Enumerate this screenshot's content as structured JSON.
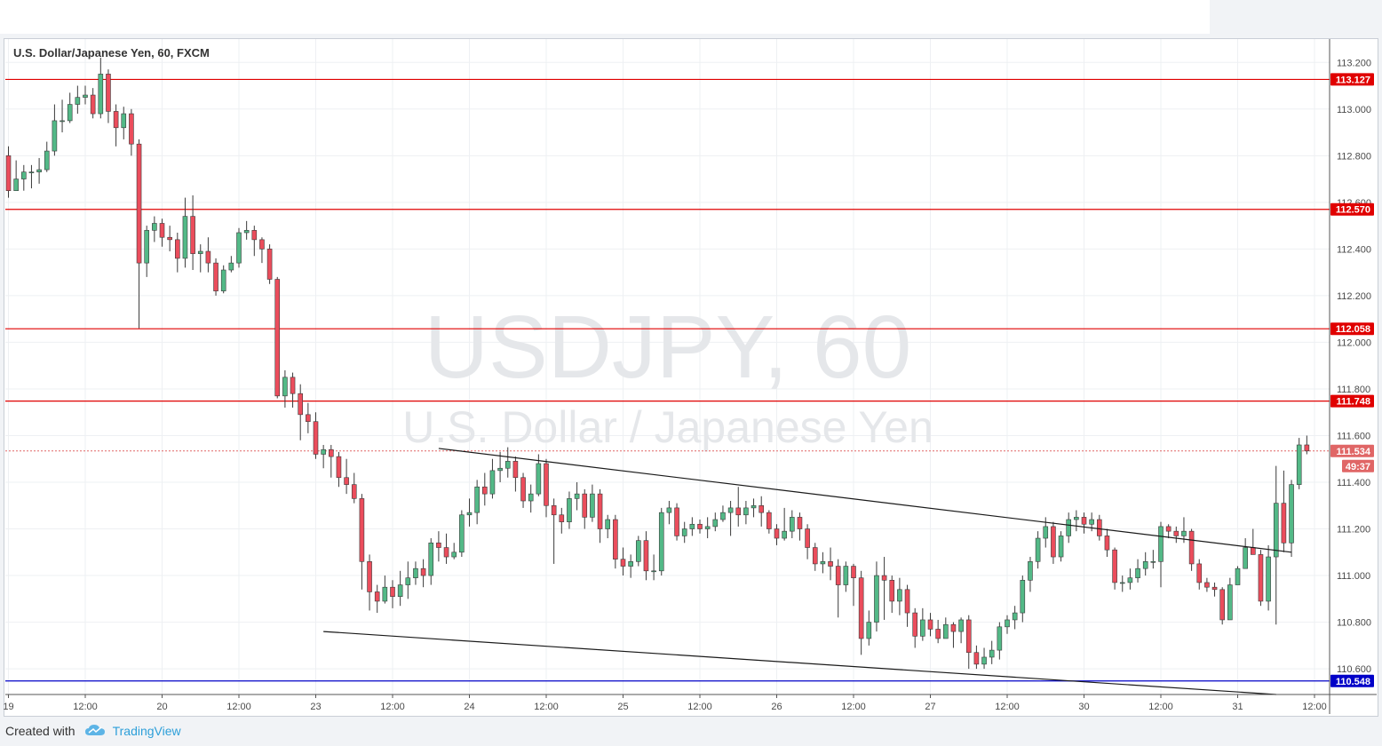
{
  "title": "U.S. Dollar/Japanese Yen, 60, FXCM",
  "watermark": {
    "symbol": "USDJPY, 60",
    "description": "U.S. Dollar / Japanese Yen"
  },
  "footer": {
    "created_with": "Created with",
    "brand": "TradingView"
  },
  "colors": {
    "up": "#53b987",
    "down": "#eb4d5c",
    "resistance": "#e00000",
    "support": "#0000c8",
    "current": "#e06666"
  },
  "chart_data": {
    "type": "candlestick",
    "ylim": [
      110.49,
      113.3
    ],
    "y_ticks": [
      "113.200",
      "113.000",
      "112.800",
      "112.600",
      "112.400",
      "112.200",
      "112.000",
      "111.800",
      "111.600",
      "111.400",
      "111.200",
      "111.000",
      "110.800",
      "110.600"
    ],
    "x_ticks": [
      "19",
      "12:00",
      "20",
      "12:00",
      "23",
      "12:00",
      "24",
      "12:00",
      "25",
      "12:00",
      "26",
      "12:00",
      "27",
      "12:00",
      "30",
      "12:00",
      "31",
      "12:00"
    ],
    "horizontal_levels": [
      {
        "value": 113.127,
        "label": "113.127",
        "kind": "resistance"
      },
      {
        "value": 112.57,
        "label": "112.570",
        "kind": "resistance"
      },
      {
        "value": 112.058,
        "label": "112.058",
        "kind": "resistance"
      },
      {
        "value": 111.748,
        "label": "111.748",
        "kind": "resistance"
      },
      {
        "value": 110.548,
        "label": "110.548",
        "kind": "support"
      }
    ],
    "current_price": {
      "value": 111.534,
      "label": "111.534",
      "countdown": "49:37"
    },
    "trendlines": [
      {
        "from": {
          "bar": 56,
          "value": 111.545
        },
        "to": {
          "bar": 167,
          "value": 111.1
        }
      },
      {
        "from": {
          "bar": 41,
          "value": 110.76
        },
        "to": {
          "bar": 165,
          "value": 110.49
        }
      }
    ],
    "candles": [
      [
        112.8,
        112.65,
        112.84,
        112.62
      ],
      [
        112.65,
        112.7,
        112.78,
        112.66
      ],
      [
        112.7,
        112.73,
        112.76,
        112.65
      ],
      [
        112.73,
        112.73,
        112.76,
        112.66
      ],
      [
        112.73,
        112.74,
        112.79,
        112.68
      ],
      [
        112.74,
        112.82,
        112.86,
        112.73
      ],
      [
        112.82,
        112.95,
        113.02,
        112.8
      ],
      [
        112.95,
        112.95,
        113.04,
        112.9
      ],
      [
        112.95,
        113.02,
        113.07,
        112.94
      ],
      [
        113.02,
        113.05,
        113.1,
        112.98
      ],
      [
        113.05,
        113.06,
        113.1,
        113.02
      ],
      [
        113.06,
        112.98,
        113.09,
        112.96
      ],
      [
        112.98,
        113.15,
        113.22,
        112.96
      ],
      [
        113.15,
        112.99,
        113.17,
        112.94
      ],
      [
        112.99,
        112.92,
        113.02,
        112.84
      ],
      [
        112.92,
        112.98,
        113.01,
        112.87
      ],
      [
        112.98,
        112.85,
        113.0,
        112.8
      ],
      [
        112.85,
        112.34,
        112.87,
        112.06
      ],
      [
        112.34,
        112.48,
        112.5,
        112.28
      ],
      [
        112.48,
        112.51,
        112.54,
        112.43
      ],
      [
        112.51,
        112.45,
        112.53,
        112.41
      ],
      [
        112.45,
        112.44,
        112.5,
        112.39
      ],
      [
        112.44,
        112.36,
        112.47,
        112.3
      ],
      [
        112.36,
        112.54,
        112.62,
        112.32
      ],
      [
        112.54,
        112.38,
        112.63,
        112.31
      ],
      [
        112.38,
        112.39,
        112.42,
        112.3
      ],
      [
        112.39,
        112.34,
        112.45,
        112.3
      ],
      [
        112.34,
        112.22,
        112.36,
        112.2
      ],
      [
        112.22,
        112.31,
        112.33,
        112.21
      ],
      [
        112.31,
        112.34,
        112.37,
        112.3
      ],
      [
        112.34,
        112.47,
        112.49,
        112.32
      ],
      [
        112.47,
        112.48,
        112.52,
        112.44
      ],
      [
        112.48,
        112.44,
        112.5,
        112.37
      ],
      [
        112.44,
        112.4,
        112.45,
        112.34
      ],
      [
        112.4,
        112.27,
        112.42,
        112.25
      ],
      [
        112.27,
        111.77,
        112.28,
        111.76
      ],
      [
        111.77,
        111.85,
        111.88,
        111.72
      ],
      [
        111.85,
        111.78,
        111.87,
        111.72
      ],
      [
        111.78,
        111.69,
        111.82,
        111.58
      ],
      [
        111.69,
        111.66,
        111.74,
        111.61
      ],
      [
        111.66,
        111.52,
        111.7,
        111.5
      ],
      [
        111.52,
        111.54,
        111.56,
        111.46
      ],
      [
        111.54,
        111.51,
        111.56,
        111.42
      ],
      [
        111.51,
        111.42,
        111.53,
        111.38
      ],
      [
        111.42,
        111.39,
        111.5,
        111.35
      ],
      [
        111.39,
        111.33,
        111.44,
        111.31
      ],
      [
        111.33,
        111.06,
        111.35,
        110.94
      ],
      [
        111.06,
        110.93,
        111.09,
        110.85
      ],
      [
        110.93,
        110.89,
        110.96,
        110.84
      ],
      [
        110.89,
        110.95,
        111.0,
        110.88
      ],
      [
        110.95,
        110.91,
        110.98,
        110.86
      ],
      [
        110.91,
        110.96,
        111.02,
        110.87
      ],
      [
        110.96,
        110.99,
        111.06,
        110.9
      ],
      [
        110.99,
        111.03,
        111.06,
        110.96
      ],
      [
        111.03,
        111.0,
        111.07,
        110.95
      ],
      [
        111.0,
        111.14,
        111.16,
        110.96
      ],
      [
        111.14,
        111.12,
        111.19,
        111.06
      ],
      [
        111.12,
        111.08,
        111.18,
        111.05
      ],
      [
        111.08,
        111.1,
        111.14,
        111.07
      ],
      [
        111.1,
        111.26,
        111.28,
        111.08
      ],
      [
        111.26,
        111.27,
        111.33,
        111.21
      ],
      [
        111.27,
        111.38,
        111.41,
        111.22
      ],
      [
        111.38,
        111.35,
        111.44,
        111.3
      ],
      [
        111.35,
        111.45,
        111.5,
        111.33
      ],
      [
        111.45,
        111.46,
        111.53,
        111.4
      ],
      [
        111.46,
        111.49,
        111.55,
        111.42
      ],
      [
        111.49,
        111.42,
        111.51,
        111.36
      ],
      [
        111.42,
        111.32,
        111.44,
        111.29
      ],
      [
        111.32,
        111.35,
        111.39,
        111.27
      ],
      [
        111.35,
        111.48,
        111.52,
        111.34
      ],
      [
        111.48,
        111.3,
        111.5,
        111.25
      ],
      [
        111.3,
        111.26,
        111.33,
        111.05
      ],
      [
        111.26,
        111.23,
        111.29,
        111.18
      ],
      [
        111.23,
        111.33,
        111.36,
        111.2
      ],
      [
        111.33,
        111.35,
        111.4,
        111.28
      ],
      [
        111.35,
        111.25,
        111.37,
        111.2
      ],
      [
        111.25,
        111.35,
        111.39,
        111.23
      ],
      [
        111.35,
        111.2,
        111.37,
        111.14
      ],
      [
        111.2,
        111.24,
        111.26,
        111.16
      ],
      [
        111.24,
        111.07,
        111.26,
        111.03
      ],
      [
        111.07,
        111.04,
        111.12,
        111.0
      ],
      [
        111.04,
        111.06,
        111.09,
        110.99
      ],
      [
        111.06,
        111.15,
        111.17,
        111.04
      ],
      [
        111.15,
        111.02,
        111.19,
        110.98
      ],
      [
        111.02,
        111.02,
        111.09,
        110.98
      ],
      [
        111.02,
        111.27,
        111.29,
        111.0
      ],
      [
        111.27,
        111.29,
        111.32,
        111.22
      ],
      [
        111.29,
        111.17,
        111.31,
        111.15
      ],
      [
        111.17,
        111.2,
        111.23,
        111.14
      ],
      [
        111.2,
        111.22,
        111.25,
        111.17
      ],
      [
        111.22,
        111.2,
        111.24,
        111.18
      ],
      [
        111.2,
        111.21,
        111.25,
        111.16
      ],
      [
        111.21,
        111.24,
        111.27,
        111.19
      ],
      [
        111.24,
        111.27,
        111.3,
        111.23
      ],
      [
        111.27,
        111.29,
        111.32,
        111.17
      ],
      [
        111.29,
        111.26,
        111.38,
        111.21
      ],
      [
        111.26,
        111.29,
        111.32,
        111.22
      ],
      [
        111.29,
        111.3,
        111.33,
        111.25
      ],
      [
        111.3,
        111.27,
        111.34,
        111.21
      ],
      [
        111.27,
        111.2,
        111.28,
        111.18
      ],
      [
        111.2,
        111.16,
        111.22,
        111.13
      ],
      [
        111.16,
        111.19,
        111.29,
        111.15
      ],
      [
        111.19,
        111.25,
        111.28,
        111.16
      ],
      [
        111.25,
        111.2,
        111.27,
        111.15
      ],
      [
        111.2,
        111.12,
        111.22,
        111.07
      ],
      [
        111.12,
        111.05,
        111.14,
        111.02
      ],
      [
        111.05,
        111.06,
        111.1,
        111.01
      ],
      [
        111.06,
        111.04,
        111.12,
        110.98
      ],
      [
        111.04,
        110.96,
        111.07,
        110.82
      ],
      [
        110.96,
        111.04,
        111.06,
        110.93
      ],
      [
        111.04,
        110.99,
        111.05,
        110.87
      ],
      [
        110.99,
        110.73,
        111.02,
        110.66
      ],
      [
        110.73,
        110.8,
        110.85,
        110.7
      ],
      [
        110.8,
        111.0,
        111.06,
        110.76
      ],
      [
        111.0,
        110.98,
        111.08,
        110.81
      ],
      [
        110.98,
        110.89,
        111.0,
        110.84
      ],
      [
        110.89,
        110.94,
        110.99,
        110.83
      ],
      [
        110.94,
        110.84,
        110.96,
        110.78
      ],
      [
        110.84,
        110.74,
        110.86,
        110.69
      ],
      [
        110.74,
        110.81,
        110.86,
        110.72
      ],
      [
        110.81,
        110.77,
        110.84,
        110.74
      ],
      [
        110.77,
        110.73,
        110.81,
        110.71
      ],
      [
        110.73,
        110.79,
        110.82,
        110.74
      ],
      [
        110.79,
        110.76,
        110.8,
        110.69
      ],
      [
        110.76,
        110.81,
        110.82,
        110.71
      ],
      [
        110.81,
        110.67,
        110.83,
        110.6
      ],
      [
        110.67,
        110.62,
        110.7,
        110.6
      ],
      [
        110.62,
        110.65,
        110.69,
        110.6
      ],
      [
        110.65,
        110.68,
        110.72,
        110.62
      ],
      [
        110.68,
        110.78,
        110.8,
        110.64
      ],
      [
        110.78,
        110.81,
        110.83,
        110.75
      ],
      [
        110.81,
        110.84,
        110.87,
        110.77
      ],
      [
        110.84,
        110.98,
        111.0,
        110.8
      ],
      [
        110.98,
        111.06,
        111.08,
        110.93
      ],
      [
        111.06,
        111.16,
        111.19,
        111.03
      ],
      [
        111.16,
        111.21,
        111.25,
        111.12
      ],
      [
        111.21,
        111.08,
        111.23,
        111.05
      ],
      [
        111.08,
        111.17,
        111.19,
        111.06
      ],
      [
        111.17,
        111.24,
        111.27,
        111.14
      ],
      [
        111.24,
        111.25,
        111.28,
        111.19
      ],
      [
        111.25,
        111.22,
        111.27,
        111.18
      ],
      [
        111.22,
        111.24,
        111.27,
        111.19
      ],
      [
        111.24,
        111.17,
        111.26,
        111.15
      ],
      [
        111.17,
        111.11,
        111.2,
        111.08
      ],
      [
        111.11,
        110.97,
        111.12,
        110.94
      ],
      [
        110.97,
        110.97,
        111.0,
        110.93
      ],
      [
        110.97,
        110.99,
        111.03,
        110.94
      ],
      [
        110.99,
        111.03,
        111.07,
        110.97
      ],
      [
        111.03,
        111.06,
        111.1,
        111.0
      ],
      [
        111.06,
        111.06,
        111.11,
        111.03
      ],
      [
        111.06,
        111.21,
        111.23,
        110.95
      ],
      [
        111.21,
        111.19,
        111.22,
        111.16
      ],
      [
        111.19,
        111.17,
        111.21,
        111.14
      ],
      [
        111.17,
        111.19,
        111.25,
        111.14
      ],
      [
        111.19,
        111.05,
        111.2,
        111.02
      ],
      [
        111.05,
        110.97,
        111.07,
        110.94
      ],
      [
        110.97,
        110.95,
        110.99,
        110.93
      ],
      [
        110.95,
        110.94,
        110.97,
        110.91
      ],
      [
        110.94,
        110.81,
        110.95,
        110.79
      ],
      [
        110.81,
        110.96,
        110.99,
        110.89
      ],
      [
        110.96,
        111.03,
        111.04,
        111.0
      ],
      [
        111.03,
        111.12,
        111.16,
        111.05
      ],
      [
        111.12,
        111.09,
        111.2,
        111.09
      ],
      [
        111.09,
        110.89,
        111.11,
        110.87
      ],
      [
        110.89,
        111.08,
        111.13,
        110.85
      ],
      [
        111.08,
        111.31,
        111.47,
        110.79
      ],
      [
        111.31,
        111.14,
        111.45,
        111.1
      ],
      [
        111.14,
        111.39,
        111.41,
        111.08
      ],
      [
        111.39,
        111.56,
        111.59,
        111.37
      ],
      [
        111.56,
        111.534,
        111.6,
        111.52
      ]
    ]
  }
}
